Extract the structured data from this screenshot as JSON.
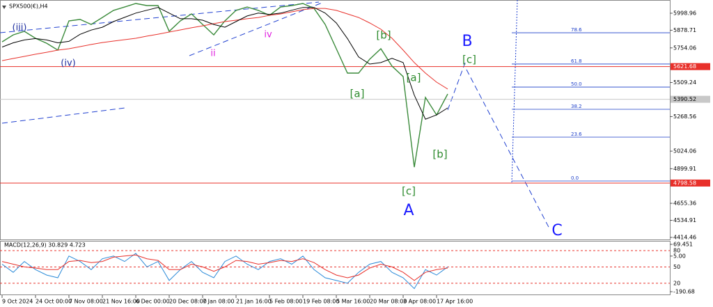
{
  "chart_data": [
    {
      "type": "line",
      "title": "SPX500(€),H4",
      "categories": [
        "9 Oct 2024",
        null,
        null,
        "24 Oct 00:00",
        null,
        null,
        "7 Nov 08:00",
        null,
        null,
        "21 Nov 16:00",
        null,
        null,
        "6 Dec 00:00",
        null,
        null,
        "20 Dec 08:00",
        null,
        null,
        "7 Jan 08:00",
        null,
        null,
        "21 Jan 16:00",
        null,
        null,
        "5 Feb 08:00",
        null,
        null,
        "19 Feb 08:00",
        null,
        null,
        "5 Mar 16:00",
        null,
        null,
        "20 Mar 08:00",
        null,
        null,
        "3 Apr 08:00",
        null,
        null,
        "17 Apr 16:00",
        null,
        null,
        null,
        null,
        null,
        null,
        null,
        null,
        null,
        null,
        null,
        null,
        null,
        null,
        null,
        null,
        null,
        null,
        null,
        null
      ],
      "series": [
        {
          "color": "#3a8a3a",
          "values": [
            5797,
            5846,
            5871,
            5822,
            5787,
            5738,
            5945,
            5955,
            5920,
            5969,
            6019,
            6043,
            6068,
            6053,
            6053,
            5871,
            5945,
            5994,
            5920,
            5846,
            5945,
            6019,
            6043,
            6019,
            5984,
            6043,
            6053,
            6068,
            6033,
            5920,
            5748,
            5576,
            5576,
            5674,
            5748,
            5625,
            5551,
            4911,
            5404,
            5280,
            5428,
            null,
            null,
            null,
            null,
            null,
            null,
            null,
            null,
            null,
            null,
            null,
            null,
            null,
            null,
            null,
            null,
            null,
            null,
            null
          ]
        },
        {
          "color": "#e8302a",
          "values": [
            5664,
            5679,
            5694,
            5709,
            5723,
            5738,
            5748,
            5763,
            5778,
            5792,
            5802,
            5812,
            5822,
            5837,
            5851,
            5866,
            5881,
            5896,
            5910,
            5925,
            5940,
            5950,
            5960,
            5969,
            5984,
            5994,
            6009,
            6024,
            6033,
            6033,
            6019,
            5994,
            5969,
            5930,
            5886,
            5822,
            5738,
            5650,
            5576,
            5512,
            5463,
            null,
            null,
            null,
            null,
            null,
            null,
            null,
            null,
            null,
            null,
            null,
            null,
            null,
            null,
            null,
            null,
            null,
            null,
            null
          ]
        },
        {
          "color": "#000000",
          "values": [
            5760,
            5790,
            5810,
            5820,
            5810,
            5790,
            5800,
            5850,
            5880,
            5900,
            5940,
            5970,
            6000,
            6020,
            6040,
            6000,
            5960,
            5960,
            5950,
            5920,
            5900,
            5940,
            5980,
            6000,
            5990,
            6000,
            6020,
            6040,
            6040,
            6000,
            5930,
            5820,
            5690,
            5640,
            5650,
            5680,
            5650,
            5420,
            5250,
            5280,
            5330,
            null,
            null,
            null,
            null,
            null,
            null,
            null,
            null,
            null,
            null,
            null,
            null,
            null,
            null,
            null,
            null,
            null,
            null,
            null
          ]
        }
      ],
      "ylim": [
        4394.8,
        6092.5
      ],
      "yticks": [
        5998.96,
        5878.71,
        5754.06,
        5509.24,
        5268.56,
        5024.06,
        4899.91,
        4655.36,
        4534.91,
        4414.46
      ],
      "hlines": [
        {
          "value": 5621.68,
          "color": "#e8302a"
        },
        {
          "value": 5390.52,
          "color": "#c8c8c8"
        },
        {
          "value": 4798.58,
          "color": "#e8302a"
        }
      ],
      "fib_color": "#1a3cc8",
      "fib_levels": [
        {
          "ratio": "78.6",
          "price": 5861
        },
        {
          "ratio": "61.8",
          "price": 5640
        },
        {
          "ratio": "50.0",
          "price": 5477
        },
        {
          "ratio": "38.2",
          "price": 5320
        },
        {
          "ratio": "23.6",
          "price": 5123
        },
        {
          "ratio": "0.0",
          "price": 4813
        }
      ],
      "annotations": [
        {
          "text": "(iii)",
          "color": "#1f2fa0"
        },
        {
          "text": "(iv)",
          "color": "#1f2fa0"
        },
        {
          "text": "ii",
          "color": "#e020e0"
        },
        {
          "text": "iv",
          "color": "#e020e0"
        },
        {
          "text": "[b]",
          "color": "#2e8b2e"
        },
        {
          "text": "[a]",
          "color": "#2e8b2e"
        },
        {
          "text": "[a]",
          "color": "#2e8b2e"
        },
        {
          "text": "[c]",
          "color": "#2e8b2e"
        },
        {
          "text": "A",
          "color": "#1a1aff"
        },
        {
          "text": "B",
          "color": "#1a1aff"
        },
        {
          "text": "[c]",
          "color": "#2e8b2e"
        },
        {
          "text": "[b]",
          "color": "#2e8b2e"
        },
        {
          "text": "C",
          "color": "#1a1aff"
        }
      ]
    },
    {
      "type": "line",
      "title": "MACD(12,26,9) 30.829 4.723",
      "series": [
        {
          "color": "#2a8ad8",
          "values": [
            55,
            40,
            60,
            45,
            35,
            30,
            70,
            60,
            45,
            65,
            70,
            60,
            75,
            50,
            60,
            25,
            45,
            60,
            40,
            30,
            60,
            70,
            55,
            45,
            60,
            65,
            55,
            70,
            45,
            30,
            25,
            20,
            40,
            55,
            60,
            40,
            30,
            10,
            45,
            35,
            50,
            null,
            null,
            null,
            null,
            null,
            null,
            null,
            null,
            null,
            null,
            null,
            null,
            null,
            null,
            null,
            null,
            null,
            null,
            null
          ]
        },
        {
          "color": "#e8302a",
          "values": [
            60,
            55,
            50,
            48,
            45,
            45,
            60,
            62,
            58,
            60,
            68,
            70,
            72,
            65,
            62,
            45,
            45,
            55,
            50,
            42,
            50,
            62,
            60,
            55,
            58,
            62,
            60,
            65,
            58,
            45,
            35,
            30,
            35,
            48,
            55,
            50,
            40,
            25,
            40,
            45,
            48,
            null,
            null,
            null,
            null,
            null,
            null,
            null,
            null,
            null,
            null,
            null,
            null,
            null,
            null,
            null,
            null,
            null,
            null,
            null
          ]
        }
      ],
      "ylim": [
        -2,
        98
      ],
      "yticks": [
        80,
        50,
        20
      ],
      "y2lim": [
        -209.81,
        88.58
      ],
      "y2ticks": [
        69.451,
        {
          "value": 5,
          "label": "5.00"
        },
        -190.68
      ]
    }
  ]
}
